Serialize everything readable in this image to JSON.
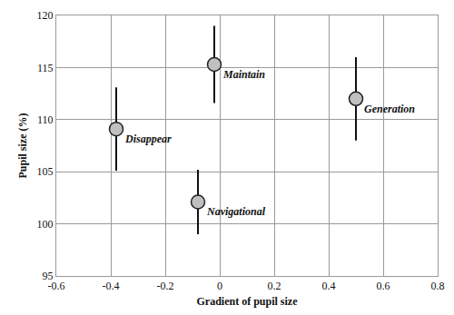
{
  "chart_data": {
    "type": "scatter",
    "x_label": "Gradient of pupil size",
    "y_label": "Pupil size (%)",
    "labels": [
      "Disappear",
      "Maintain",
      "Navigational",
      "Generation"
    ],
    "x": [
      -0.38,
      -0.02,
      -0.08,
      0.5
    ],
    "values": [
      109.1,
      115.3,
      102.1,
      112.0
    ],
    "errors": [
      4.0,
      3.7,
      3.1,
      4.0
    ],
    "color": "#c0c0c0",
    "marker": "circle",
    "xlim": [
      -0.6,
      0.8
    ],
    "xticks": [
      -0.6,
      -0.4,
      -0.2,
      0,
      0.2,
      0.4,
      0.6,
      0.8
    ],
    "ylim": [
      95,
      120
    ],
    "yticks": [
      95,
      100,
      105,
      110,
      115,
      120
    ],
    "grid": true
  }
}
